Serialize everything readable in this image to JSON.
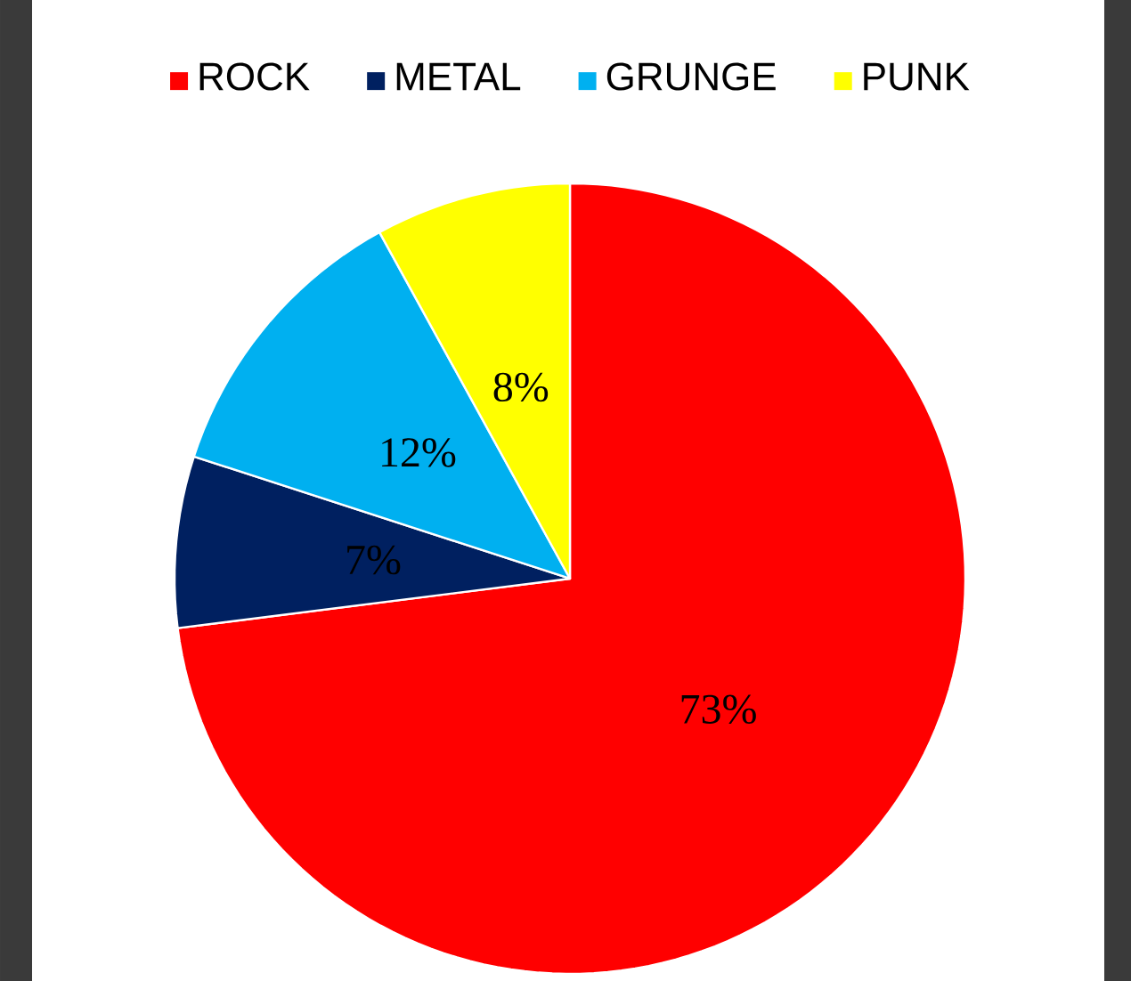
{
  "chart_data": {
    "type": "pie",
    "categories": [
      "ROCK",
      "METAL",
      "GRUNGE",
      "PUNK"
    ],
    "values": [
      73,
      7,
      12,
      8
    ],
    "colors": [
      "#ff0000",
      "#002060",
      "#00b0f0",
      "#ffff00"
    ],
    "value_labels": [
      "73%",
      "7%",
      "12%",
      "8%"
    ],
    "legend": "top"
  }
}
